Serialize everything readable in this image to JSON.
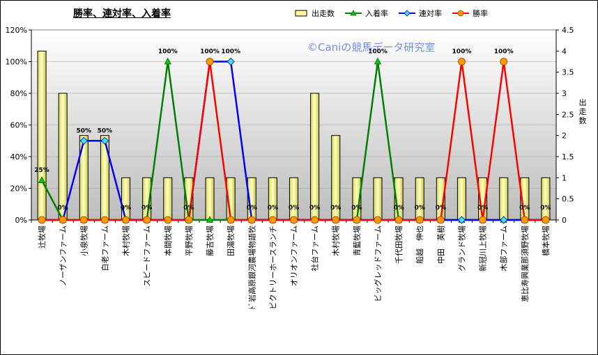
{
  "chart_data": {
    "type": "bar",
    "title": "勝率、連対率、入着率",
    "watermark": "©Caniの競馬データ研究室",
    "y2label": "出走数",
    "categories": [
      "辻牧場",
      "ノーザンファーム",
      "小泉牧場",
      "白老ファーム",
      "木村牧場",
      "スピードファーム",
      "本間牧場",
      "平野牧場",
      "藤吉牧場",
      "田湯牧場",
      "ﾄﾞ岩高原銀河農場物語牧",
      "ビクトリーホースランチ",
      "オリオンファーム",
      "社台ファーム",
      "木村牧場",
      "青藍牧場",
      "ビッグレッドファーム",
      "千代田牧場",
      "船越　伸也",
      "中田　英樹",
      "グランド牧場",
      "新冠川上牧場",
      "木部ファーム",
      "恵比寿興業那須野牧場",
      "橋本牧場"
    ],
    "ylim": [
      0,
      120
    ],
    "y_ticks": [
      "0%",
      "20%",
      "40%",
      "60%",
      "80%",
      "100%",
      "120%"
    ],
    "y2lim": [
      0,
      4.5
    ],
    "y2_ticks": [
      "0",
      "0.5",
      "1",
      "1.5",
      "2",
      "2.5",
      "3",
      "3.5",
      "4",
      "4.5"
    ],
    "series": [
      {
        "name": "出走数",
        "type": "bar",
        "axis": "right",
        "color": "#ffff99",
        "values": [
          4,
          3,
          2,
          2,
          1,
          1,
          1,
          1,
          1,
          1,
          1,
          1,
          1,
          3,
          2,
          1,
          1,
          1,
          1,
          1,
          1,
          1,
          1,
          1,
          1
        ]
      },
      {
        "name": "入着率",
        "type": "line",
        "color": "#008000",
        "values": [
          25,
          0,
          0,
          0,
          0,
          0,
          100,
          0,
          0,
          0,
          0,
          0,
          0,
          0,
          0,
          0,
          100,
          0,
          0,
          0,
          0,
          0,
          0,
          0,
          0
        ]
      },
      {
        "name": "連対率",
        "type": "line",
        "color": "#0000ff",
        "values": [
          0,
          0,
          50,
          50,
          0,
          0,
          0,
          0,
          100,
          100,
          0,
          0,
          0,
          0,
          0,
          0,
          0,
          0,
          0,
          0,
          0,
          0,
          0,
          0,
          0
        ]
      },
      {
        "name": "勝率",
        "type": "line",
        "color": "#ff0000",
        "values": [
          0,
          0,
          0,
          0,
          0,
          0,
          0,
          0,
          100,
          0,
          0,
          0,
          0,
          0,
          0,
          0,
          0,
          0,
          0,
          0,
          100,
          0,
          100,
          0,
          0
        ]
      }
    ],
    "data_labels": [
      {
        "index": 0,
        "text": "25%"
      },
      {
        "index": 1,
        "text": "0%"
      },
      {
        "index": 2,
        "text": "50%"
      },
      {
        "index": 3,
        "text": "50%"
      },
      {
        "index": 4,
        "text": "0%"
      },
      {
        "index": 5,
        "text": "0%"
      },
      {
        "index": 6,
        "text": "100%"
      },
      {
        "index": 7,
        "text": "0%"
      },
      {
        "index": 8,
        "text": "100%"
      },
      {
        "index": 9,
        "text": "100%"
      },
      {
        "index": 10,
        "text": "0%"
      },
      {
        "index": 11,
        "text": "0%"
      },
      {
        "index": 12,
        "text": "0%"
      },
      {
        "index": 13,
        "text": "0%"
      },
      {
        "index": 14,
        "text": "0%"
      },
      {
        "index": 15,
        "text": "0%"
      },
      {
        "index": 16,
        "text": "100%"
      },
      {
        "index": 17,
        "text": "0%"
      },
      {
        "index": 18,
        "text": "0%"
      },
      {
        "index": 19,
        "text": "0%"
      },
      {
        "index": 20,
        "text": "100%"
      },
      {
        "index": 21,
        "text": "0%"
      },
      {
        "index": 22,
        "text": "100%"
      },
      {
        "index": 23,
        "text": "0%"
      },
      {
        "index": 24,
        "text": "0%"
      }
    ],
    "legend_position": "top",
    "plot_background": "gradient"
  }
}
